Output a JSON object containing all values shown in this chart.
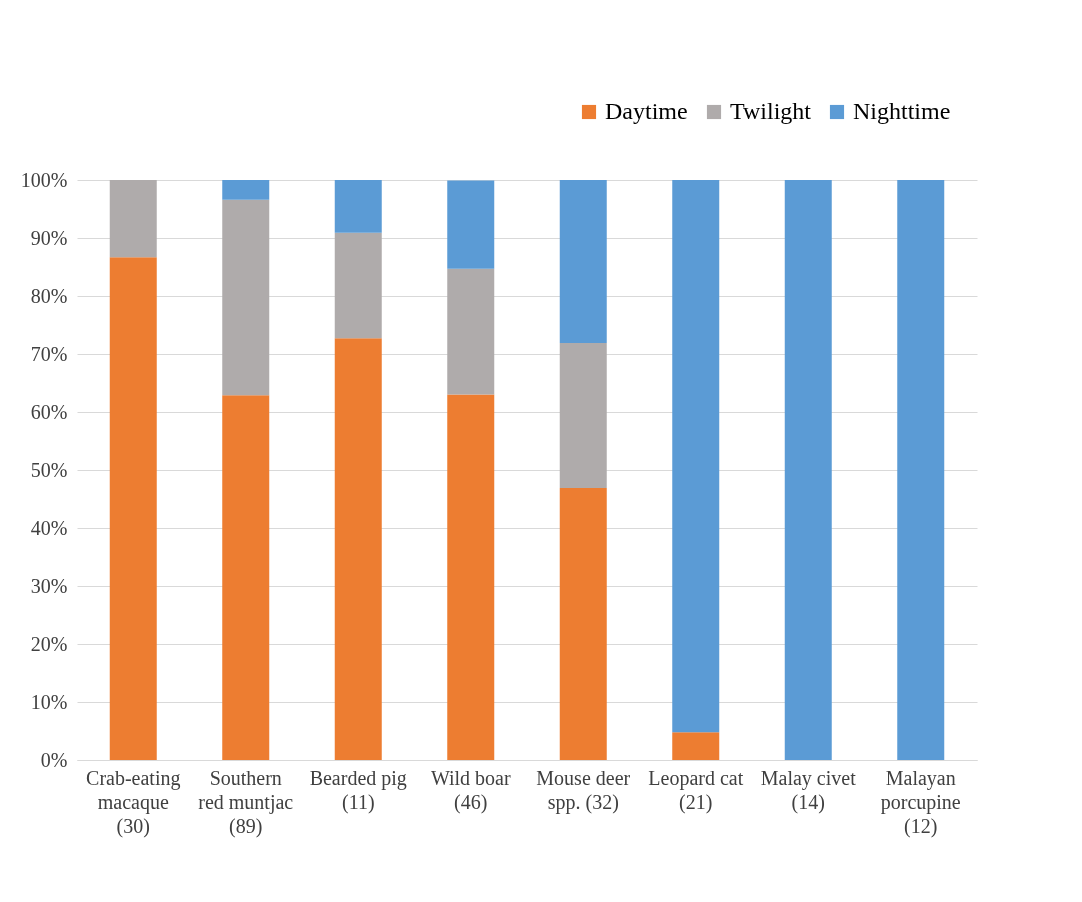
{
  "chart_data": {
    "type": "bar",
    "stacked": true,
    "categories": [
      "Crab-eating macaque (30)",
      "Southern red muntjac (89)",
      "Bearded pig (11)",
      "Wild boar (46)",
      "Mouse deer spp. (32)",
      "Leopard cat (21)",
      "Malay civet (14)",
      "Malayan porcupine (12)"
    ],
    "series": [
      {
        "name": "Daytime",
        "color": "#ed7d31",
        "values": [
          86.7,
          62.9,
          72.7,
          63.0,
          46.9,
          4.8,
          0,
          0
        ]
      },
      {
        "name": "Twilight",
        "color": "#afabab",
        "values": [
          13.3,
          33.7,
          18.2,
          21.7,
          25.0,
          0,
          0,
          0
        ]
      },
      {
        "name": "Nighttime",
        "color": "#5b9bd5",
        "values": [
          0,
          3.4,
          9.1,
          15.2,
          28.1,
          95.2,
          100,
          100
        ]
      }
    ],
    "ylim": [
      0,
      100
    ],
    "yticks": [
      {
        "value": 0,
        "label": "0%"
      },
      {
        "value": 10,
        "label": "10%"
      },
      {
        "value": 20,
        "label": "20%"
      },
      {
        "value": 30,
        "label": "30%"
      },
      {
        "value": 40,
        "label": "40%"
      },
      {
        "value": 50,
        "label": "50%"
      },
      {
        "value": 60,
        "label": "60%"
      },
      {
        "value": 70,
        "label": "70%"
      },
      {
        "value": 80,
        "label": "80%"
      },
      {
        "value": 90,
        "label": "90%"
      },
      {
        "value": 100,
        "label": "100%"
      }
    ],
    "grid": "y",
    "legend": "top right"
  }
}
